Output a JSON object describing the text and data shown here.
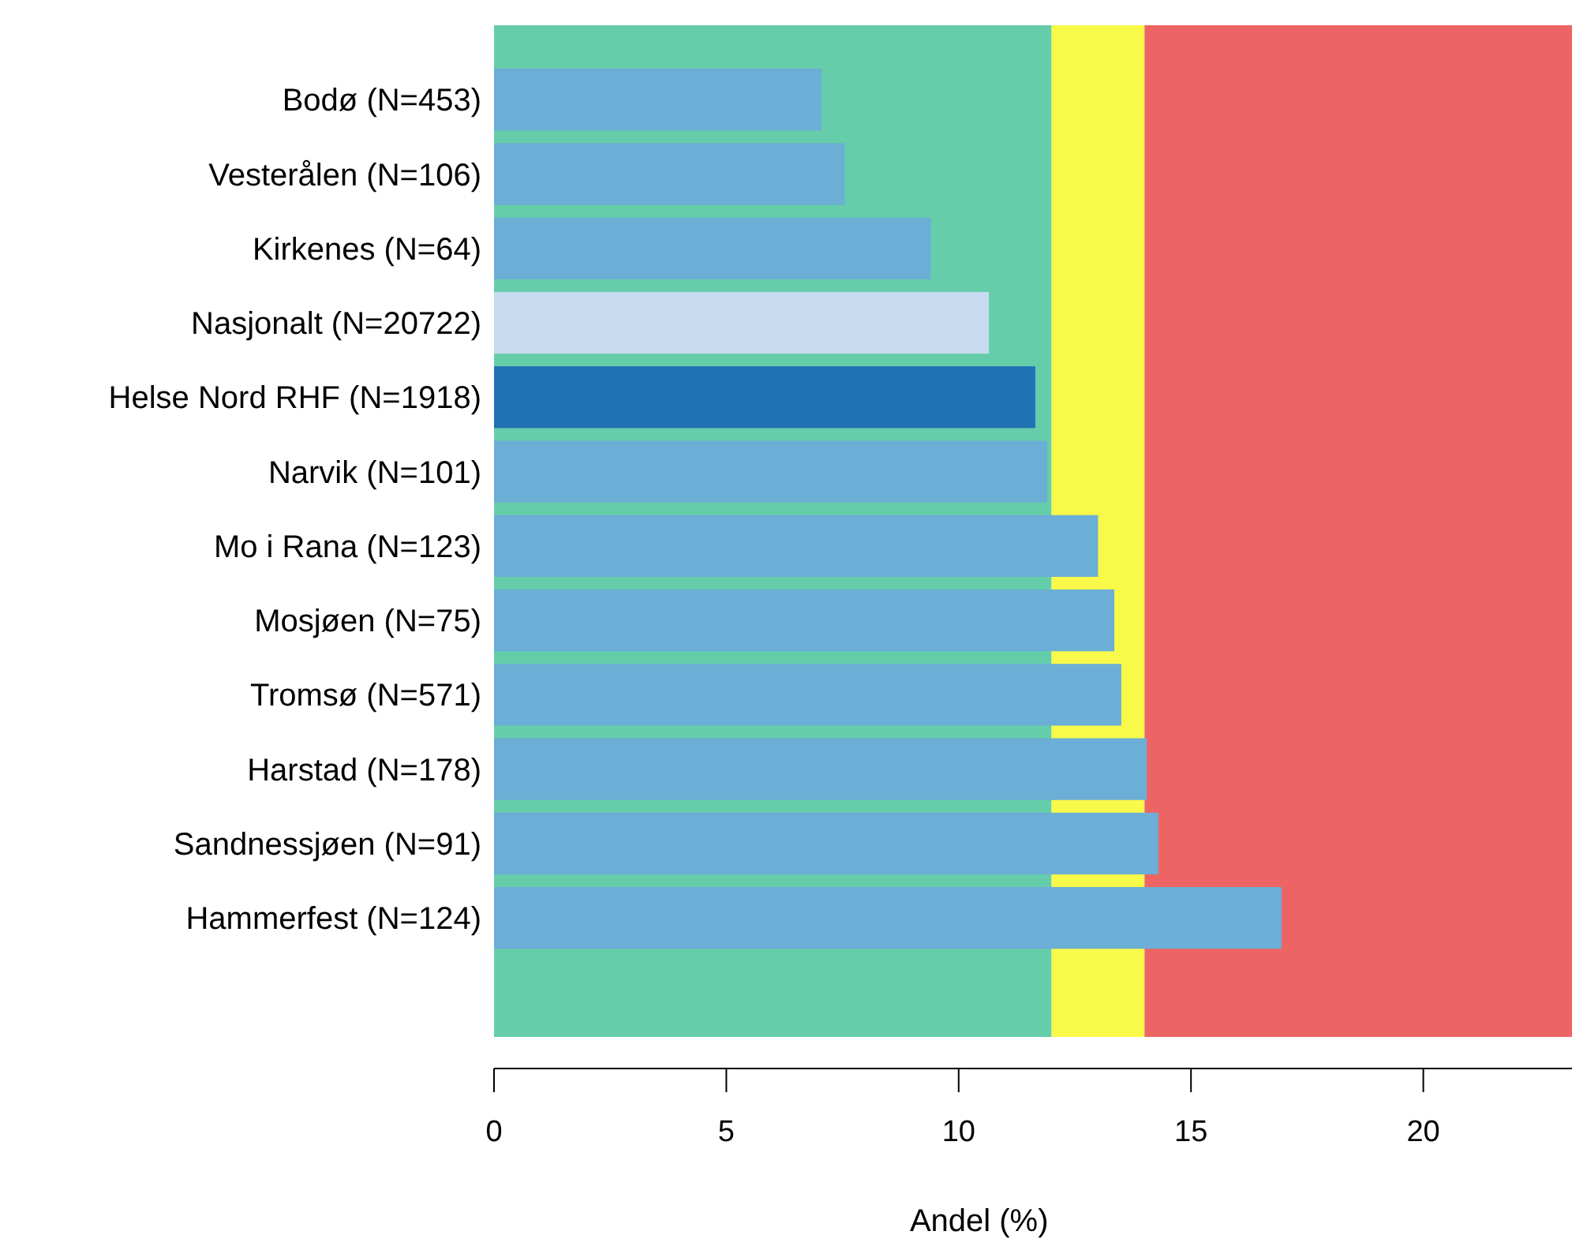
{
  "chart_data": {
    "type": "bar",
    "orientation": "horizontal",
    "xlabel": "Andel (%)",
    "categories": [
      "Bodø (N=453)",
      "Vesterålen (N=106)",
      "Kirkenes (N=64)",
      "Nasjonalt (N=20722)",
      "Helse Nord RHF (N=1918)",
      "Narvik (N=101)",
      "Mo i Rana (N=123)",
      "Mosjøen (N=75)",
      "Tromsø (N=571)",
      "Harstad (N=178)",
      "Sandnessjøen (N=91)",
      "Hammerfest (N=124)"
    ],
    "values": [
      7.05,
      7.55,
      9.4,
      10.65,
      11.65,
      11.9,
      13.0,
      13.35,
      13.5,
      14.05,
      14.3,
      16.95
    ],
    "colors": [
      "#6baed6",
      "#6baed6",
      "#6baed6",
      "#c6dbef",
      "#2171b5",
      "#6baed6",
      "#6baed6",
      "#6baed6",
      "#6baed6",
      "#6baed6",
      "#6baed6",
      "#6baed6"
    ],
    "xlim": [
      0,
      23.2
    ],
    "xticks": [
      0,
      5,
      10,
      15,
      20
    ],
    "bands": [
      {
        "axis": "x",
        "from": 0,
        "to": 12,
        "color": "#66cdaa"
      },
      {
        "axis": "x",
        "from": 12,
        "to": 14,
        "color": "#f9f94a"
      },
      {
        "axis": "x",
        "from": 14,
        "to": 23.2,
        "color": "#ed6464"
      }
    ]
  }
}
